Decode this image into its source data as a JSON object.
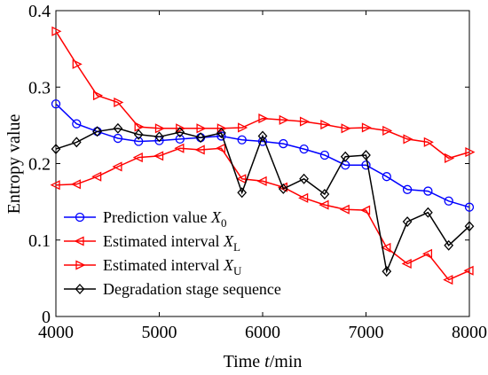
{
  "chart_data": {
    "type": "line",
    "title": "",
    "xlabel": "Time t/min",
    "xlabel_parts": {
      "pre": "Time ",
      "italic": "t",
      "post": "/min"
    },
    "ylabel": "Entropy value",
    "xlim": [
      4000,
      8000
    ],
    "ylim": [
      0,
      0.4
    ],
    "xticks": [
      4000,
      5000,
      6000,
      7000,
      8000
    ],
    "yticks": [
      0,
      0.1,
      0.2,
      0.3,
      0.4
    ],
    "ytick_labels": [
      "0",
      "0.1",
      "0.2",
      "0.3",
      "0.4"
    ],
    "grid": false,
    "legend_position": "bottom-left",
    "x": [
      4000,
      4200,
      4400,
      4600,
      4800,
      5000,
      5200,
      5400,
      5600,
      5800,
      6000,
      6200,
      6400,
      6600,
      6800,
      7000,
      7200,
      7400,
      7600,
      7800,
      8000
    ],
    "series": [
      {
        "name": "Prediction value X0",
        "legend_text": "Prediction value ",
        "legend_var": "X",
        "legend_sub": "0",
        "color": "#0000ff",
        "marker": "circle",
        "values": [
          0.278,
          0.252,
          0.242,
          0.233,
          0.229,
          0.23,
          0.232,
          0.234,
          0.236,
          0.231,
          0.229,
          0.226,
          0.219,
          0.211,
          0.198,
          0.198,
          0.183,
          0.166,
          0.164,
          0.151,
          0.143
        ]
      },
      {
        "name": "Estimated interval XL",
        "legend_text": "Estimated interval ",
        "legend_var": "X",
        "legend_sub": "L",
        "color": "#ff0000",
        "marker": "triangle-left",
        "values": [
          0.172,
          0.173,
          0.183,
          0.196,
          0.208,
          0.21,
          0.22,
          0.218,
          0.22,
          0.18,
          0.177,
          0.169,
          0.155,
          0.146,
          0.14,
          0.139,
          0.09,
          0.069,
          0.082,
          0.048,
          0.06
        ]
      },
      {
        "name": "Estimated interval XU",
        "legend_text": "Estimated interval ",
        "legend_var": "X",
        "legend_sub": "U",
        "color": "#ff0000",
        "marker": "triangle-right",
        "values": [
          0.373,
          0.33,
          0.289,
          0.28,
          0.248,
          0.246,
          0.246,
          0.246,
          0.246,
          0.247,
          0.259,
          0.257,
          0.255,
          0.251,
          0.246,
          0.247,
          0.243,
          0.232,
          0.228,
          0.207,
          0.215
        ]
      },
      {
        "name": "Degradation stage sequence",
        "legend_text": "Degradation stage sequence",
        "legend_var": "",
        "legend_sub": "",
        "color": "#000000",
        "marker": "diamond",
        "values": [
          0.219,
          0.228,
          0.242,
          0.246,
          0.238,
          0.235,
          0.241,
          0.234,
          0.24,
          0.162,
          0.236,
          0.167,
          0.18,
          0.16,
          0.209,
          0.211,
          0.059,
          0.124,
          0.136,
          0.093,
          0.118
        ]
      }
    ]
  }
}
